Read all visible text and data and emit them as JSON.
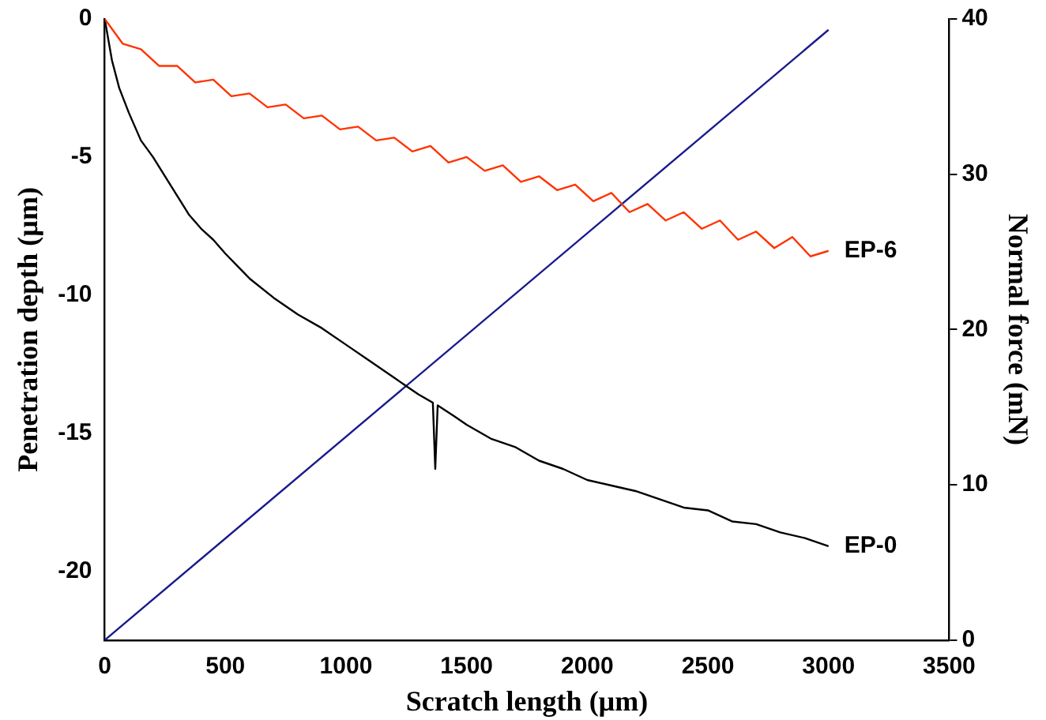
{
  "chart_data": {
    "type": "line",
    "xlabel": "Scratch length (µm)",
    "ylabel": "Penetration depth (µm)",
    "y2label": "Normal force (mN)",
    "xlim": [
      0,
      3500
    ],
    "xticks": [
      0,
      500,
      1000,
      1500,
      2000,
      2500,
      3000,
      3500
    ],
    "ylim": [
      -22.5,
      0
    ],
    "yticks": [
      0,
      -5,
      -10,
      -15,
      -20
    ],
    "y2lim": [
      0,
      40
    ],
    "y2ticks": [
      0,
      10,
      20,
      30,
      40
    ],
    "grid": false,
    "legend": false,
    "marker": "none",
    "line_style": "solid",
    "series": [
      {
        "name": "EP-6",
        "color": "#ff3300",
        "x": [
          0,
          75,
          150,
          225,
          300,
          375,
          450,
          525,
          600,
          675,
          750,
          825,
          900,
          975,
          1050,
          1125,
          1200,
          1275,
          1350,
          1425,
          1500,
          1575,
          1650,
          1725,
          1800,
          1875,
          1950,
          2025,
          2100,
          2175,
          2250,
          2325,
          2400,
          2475,
          2550,
          2625,
          2700,
          2775,
          2850,
          2925,
          3000
        ],
        "values": [
          0,
          -0.9,
          -1.1,
          -1.7,
          -1.7,
          -2.3,
          -2.2,
          -2.8,
          -2.7,
          -3.2,
          -3.1,
          -3.6,
          -3.5,
          -4.0,
          -3.9,
          -4.4,
          -4.3,
          -4.8,
          -4.6,
          -5.2,
          -5.0,
          -5.5,
          -5.3,
          -5.9,
          -5.7,
          -6.2,
          -6.0,
          -6.6,
          -6.3,
          -7.0,
          -6.7,
          -7.3,
          -7.0,
          -7.6,
          -7.3,
          -8.0,
          -7.7,
          -8.3,
          -7.9,
          -8.6,
          -8.4
        ]
      },
      {
        "name": "EP-0",
        "color": "#000000",
        "x": [
          0,
          30,
          60,
          100,
          150,
          200,
          250,
          300,
          350,
          400,
          450,
          500,
          600,
          700,
          800,
          900,
          1000,
          1100,
          1200,
          1300,
          1360,
          1370,
          1380,
          1450,
          1500,
          1600,
          1700,
          1800,
          1900,
          2000,
          2100,
          2200,
          2300,
          2400,
          2500,
          2600,
          2700,
          2800,
          2900,
          3000
        ],
        "values": [
          0,
          -1.5,
          -2.5,
          -3.4,
          -4.4,
          -5.0,
          -5.7,
          -6.4,
          -7.1,
          -7.6,
          -8.0,
          -8.5,
          -9.4,
          -10.1,
          -10.7,
          -11.2,
          -11.8,
          -12.4,
          -13.0,
          -13.6,
          -13.9,
          -16.3,
          -14.0,
          -14.4,
          -14.7,
          -15.2,
          -15.5,
          -16.0,
          -16.3,
          -16.7,
          -16.9,
          -17.1,
          -17.4,
          -17.7,
          -17.8,
          -18.2,
          -18.3,
          -18.6,
          -18.8,
          -19.1
        ]
      },
      {
        "color": "#1a1a8c",
        "axis": "y2",
        "x": [
          0,
          3000
        ],
        "values": [
          0,
          39.3
        ]
      }
    ]
  }
}
